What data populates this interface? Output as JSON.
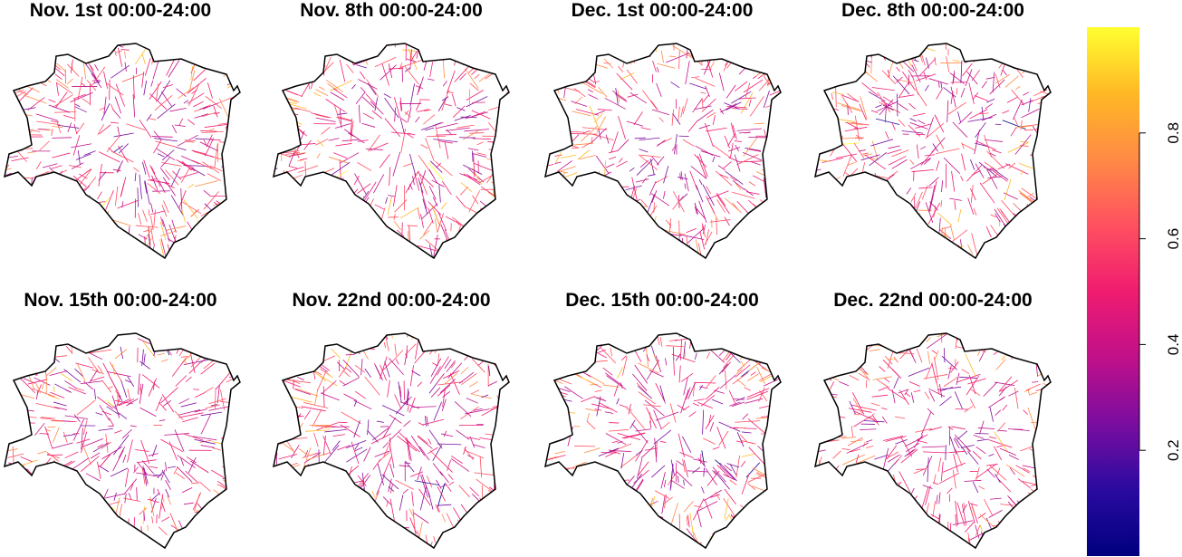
{
  "panels": [
    {
      "title": "Nov. 1st 00:00-24:00"
    },
    {
      "title": "Nov. 8th 00:00-24:00"
    },
    {
      "title": "Dec. 1st 00:00-24:00"
    },
    {
      "title": "Dec. 8th 00:00-24:00"
    },
    {
      "title": "Nov. 15th 00:00-24:00"
    },
    {
      "title": "Nov. 22nd 00:00-24:00"
    },
    {
      "title": "Dec. 15th 00:00-24:00"
    },
    {
      "title": "Dec. 22nd 00:00-24:00"
    }
  ],
  "colorbar": {
    "limits": [
      0,
      1
    ],
    "ticks": [
      0.2,
      0.4,
      0.6,
      0.8
    ],
    "colors": [
      "#00007f",
      "#2a0aa0",
      "#7a0da0",
      "#c0108a",
      "#f01c70",
      "#ff5060",
      "#ff8a45",
      "#ffb825",
      "#ffff30"
    ]
  }
}
